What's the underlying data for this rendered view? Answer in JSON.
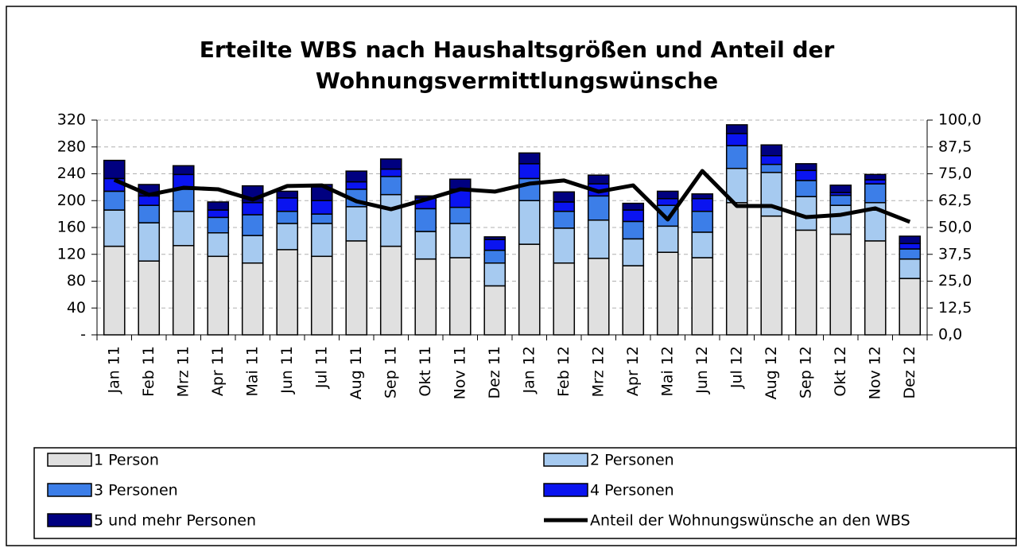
{
  "chart_data": {
    "type": "bar",
    "stacked": true,
    "title": [
      "Erteilte WBS nach Haushaltsgrößen und Anteil der",
      "Wohnungsvermittlungswünsche"
    ],
    "categories": [
      "Jan 11",
      "Feb 11",
      "Mrz 11",
      "Apr 11",
      "Mai 11",
      "Jun 11",
      "Jul 11",
      "Aug 11",
      "Sep 11",
      "Okt 11",
      "Nov 11",
      "Dez 11",
      "Jan 12",
      "Feb 12",
      "Mrz 12",
      "Apr 12",
      "Mai 12",
      "Jun 12",
      "Jul 12",
      "Aug 12",
      "Sep 12",
      "Okt 12",
      "Nov 12",
      "Dez 12"
    ],
    "series": [
      {
        "name": "1 Person",
        "color": "#e0e0e0",
        "values": [
          132,
          110,
          133,
          117,
          107,
          127,
          117,
          140,
          132,
          113,
          115,
          73,
          135,
          107,
          114,
          103,
          123,
          115,
          197,
          177,
          156,
          150,
          140,
          84
        ]
      },
      {
        "name": "2 Personen",
        "color": "#a6caf0",
        "values": [
          54,
          57,
          51,
          35,
          41,
          39,
          49,
          51,
          77,
          41,
          51,
          34,
          65,
          52,
          57,
          40,
          39,
          38,
          51,
          65,
          50,
          43,
          57,
          29
        ]
      },
      {
        "name": "3 Personen",
        "color": "#3c7ee8",
        "values": [
          28,
          26,
          33,
          23,
          31,
          18,
          14,
          26,
          27,
          34,
          24,
          19,
          33,
          25,
          36,
          26,
          31,
          31,
          34,
          12,
          24,
          15,
          28,
          15
        ]
      },
      {
        "name": "4 Personen",
        "color": "#0a14f0",
        "values": [
          19,
          14,
          22,
          11,
          18,
          20,
          20,
          11,
          11,
          16,
          27,
          16,
          22,
          14,
          18,
          17,
          10,
          19,
          18,
          13,
          15,
          4,
          6,
          8
        ]
      },
      {
        "name": "5 und mehr Personen",
        "color": "#000080",
        "values": [
          27,
          17,
          13,
          12,
          25,
          10,
          24,
          16,
          15,
          3,
          15,
          4,
          16,
          15,
          13,
          10,
          11,
          7,
          13,
          16,
          10,
          11,
          8,
          11
        ]
      },
      {
        "name": "Anteil der Wohnungswünsche an den WBS",
        "type": "line",
        "axis": "y2",
        "color": "#000000",
        "values": [
          72.2,
          65.2,
          68.5,
          67.8,
          63.0,
          69.3,
          69.6,
          62.2,
          58.5,
          63.0,
          67.8,
          66.7,
          70.4,
          71.9,
          66.7,
          69.6,
          53.7,
          76.3,
          60.0,
          60.0,
          54.8,
          55.9,
          58.9,
          52.6
        ]
      }
    ],
    "ylim": [
      0,
      320
    ],
    "yticks": [
      {
        "value": 0,
        "label": "-"
      },
      40,
      80,
      120,
      160,
      200,
      240,
      280,
      320
    ],
    "y2lim": [
      0,
      100
    ],
    "y2ticks": [
      {
        "value": 0,
        "label": "0,0"
      },
      {
        "value": 12.5,
        "label": "12,5"
      },
      {
        "value": 25,
        "label": "25,0"
      },
      {
        "value": 37.5,
        "label": "37,5"
      },
      {
        "value": 50,
        "label": "50,0"
      },
      {
        "value": 62.5,
        "label": "62,5"
      },
      {
        "value": 75,
        "label": "75,0"
      },
      {
        "value": 87.5,
        "label": "87,5"
      },
      {
        "value": 100,
        "label": "100,0"
      }
    ],
    "grid": true,
    "legend": "bottom"
  }
}
